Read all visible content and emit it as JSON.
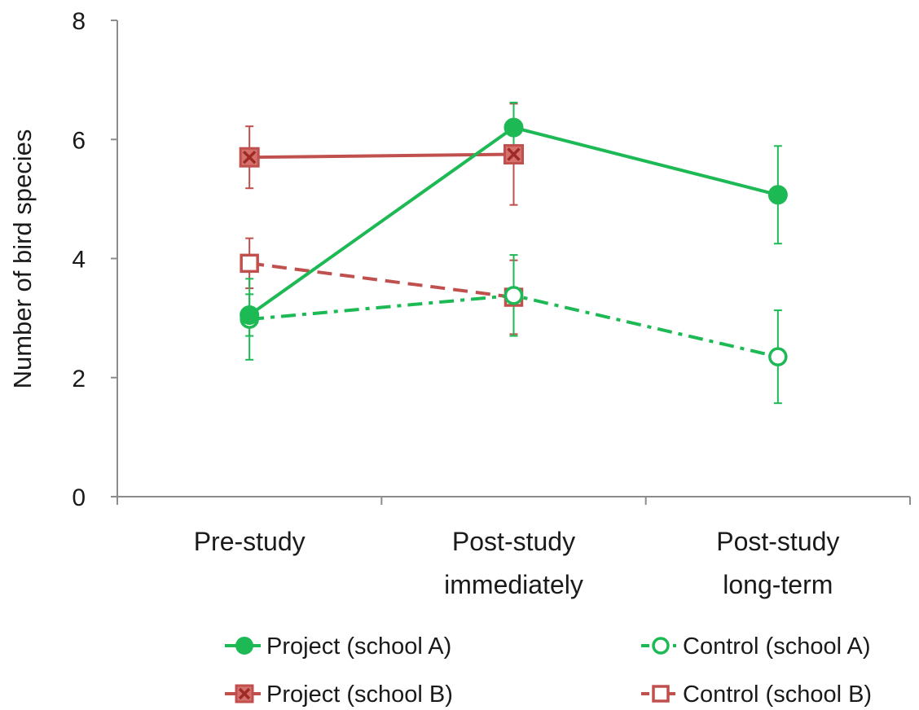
{
  "chart_data": {
    "type": "line",
    "title": "",
    "xlabel": "",
    "ylabel": "Number of bird species",
    "ylim": [
      0,
      8
    ],
    "yticks": [
      "0",
      "2",
      "4",
      "6",
      "8"
    ],
    "categories": [
      [
        "Pre-study"
      ],
      [
        "Post-study",
        "immediately"
      ],
      [
        "Post-study",
        "long-term"
      ]
    ],
    "grid": false,
    "legend_position": "bottom",
    "series": [
      {
        "name": "Project (school A)",
        "color": "#1db954",
        "line_style": "solid",
        "marker": "filled-circle",
        "values": [
          3.05,
          6.2,
          5.07
        ],
        "errors": [
          0.35,
          0.42,
          0.82
        ]
      },
      {
        "name": "Control (school A)",
        "color": "#1db954",
        "line_style": "dash-dot",
        "marker": "open-circle",
        "values": [
          2.98,
          3.38,
          2.35
        ],
        "errors": [
          0.68,
          0.68,
          0.78
        ]
      },
      {
        "name": "Project (school B)",
        "color": "#c0504d",
        "line_style": "solid",
        "marker": "x-square",
        "values": [
          5.7,
          5.75,
          null
        ],
        "errors": [
          0.52,
          0.85,
          null
        ]
      },
      {
        "name": "Control (school B)",
        "color": "#c0504d",
        "line_style": "dashed",
        "marker": "open-square",
        "values": [
          3.92,
          3.35,
          null
        ],
        "errors": [
          0.42,
          0.62,
          null
        ]
      }
    ]
  }
}
